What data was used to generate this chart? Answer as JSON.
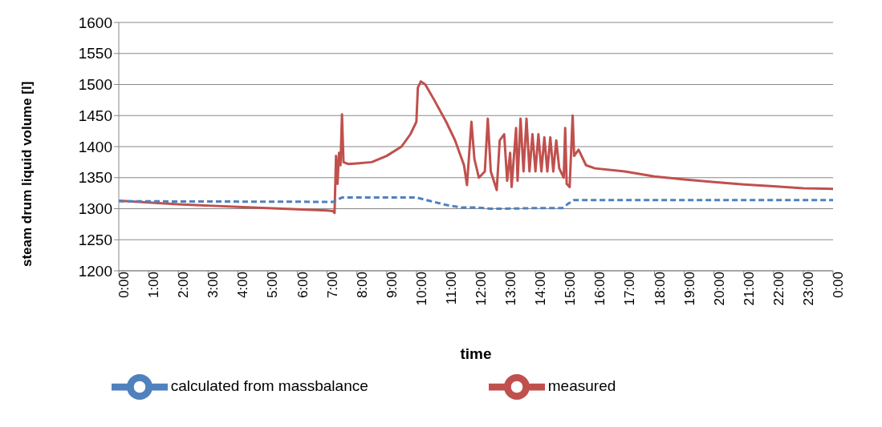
{
  "chart_data": {
    "type": "line",
    "xlabel": "time",
    "ylabel": "steam drum liquid volume [l]",
    "xlim": [
      0,
      24
    ],
    "xticks": [
      {
        "value": 0,
        "label": "0:00"
      },
      {
        "value": 1,
        "label": "1:00"
      },
      {
        "value": 2,
        "label": "2:00"
      },
      {
        "value": 3,
        "label": "3:00"
      },
      {
        "value": 4,
        "label": "4:00"
      },
      {
        "value": 5,
        "label": "5:00"
      },
      {
        "value": 6,
        "label": "6:00"
      },
      {
        "value": 7,
        "label": "7:00"
      },
      {
        "value": 8,
        "label": "8:00"
      },
      {
        "value": 9,
        "label": "9:00"
      },
      {
        "value": 10,
        "label": "10:00"
      },
      {
        "value": 11,
        "label": "11:00"
      },
      {
        "value": 12,
        "label": "12:00"
      },
      {
        "value": 13,
        "label": "13:00"
      },
      {
        "value": 14,
        "label": "14:00"
      },
      {
        "value": 15,
        "label": "15:00"
      },
      {
        "value": 16,
        "label": "16:00"
      },
      {
        "value": 17,
        "label": "17:00"
      },
      {
        "value": 18,
        "label": "18:00"
      },
      {
        "value": 19,
        "label": "19:00"
      },
      {
        "value": 20,
        "label": "20:00"
      },
      {
        "value": 21,
        "label": "21:00"
      },
      {
        "value": 22,
        "label": "22:00"
      },
      {
        "value": 23,
        "label": "23:00"
      },
      {
        "value": 24,
        "label": "0:00"
      }
    ],
    "ylim": [
      1200,
      1600
    ],
    "yticks": [
      1200,
      1250,
      1300,
      1350,
      1400,
      1450,
      1500,
      1550,
      1600
    ],
    "grid": "y",
    "legend": "bottom",
    "marker": "none",
    "series": [
      {
        "name": "measured",
        "color": "#c0504d",
        "line_style": "solid",
        "x": [
          0,
          1,
          2,
          3,
          4,
          5,
          6,
          7,
          7.2,
          7.25,
          7.3,
          7.35,
          7.4,
          7.45,
          7.5,
          7.55,
          7.7,
          8,
          8.5,
          9,
          9.5,
          9.8,
          10,
          10.05,
          10.15,
          10.3,
          10.6,
          11,
          11.3,
          11.6,
          11.7,
          11.85,
          11.95,
          12.1,
          12.3,
          12.4,
          12.5,
          12.7,
          12.8,
          12.95,
          13.05,
          13.15,
          13.2,
          13.35,
          13.4,
          13.5,
          13.6,
          13.7,
          13.8,
          13.9,
          14,
          14.1,
          14.2,
          14.3,
          14.4,
          14.5,
          14.6,
          14.7,
          14.8,
          14.95,
          15,
          15.05,
          15.15,
          15.25,
          15.3,
          15.45,
          15.7,
          16,
          17,
          18,
          19,
          20,
          21,
          22,
          23,
          24
        ],
        "values": [
          1313,
          1310,
          1307,
          1305,
          1303,
          1301,
          1299,
          1297,
          1296,
          1293,
          1385,
          1340,
          1390,
          1370,
          1452,
          1375,
          1372,
          1373,
          1375,
          1385,
          1400,
          1420,
          1440,
          1495,
          1505,
          1500,
          1475,
          1440,
          1410,
          1370,
          1338,
          1440,
          1380,
          1350,
          1360,
          1445,
          1360,
          1330,
          1410,
          1420,
          1345,
          1390,
          1335,
          1430,
          1345,
          1445,
          1360,
          1445,
          1360,
          1420,
          1360,
          1420,
          1360,
          1415,
          1360,
          1415,
          1360,
          1410,
          1365,
          1350,
          1430,
          1340,
          1335,
          1450,
          1385,
          1395,
          1370,
          1365,
          1360,
          1352,
          1347,
          1343,
          1339,
          1336,
          1333,
          1332
        ]
      },
      {
        "name": "calculated from massbalance",
        "color": "#4f81bd",
        "line_style": "dashed",
        "x": [
          0,
          7.2,
          7.5,
          10,
          10.5,
          11,
          11.5,
          12,
          12.5,
          13,
          14,
          14.9,
          15.1,
          15.3,
          24
        ],
        "values": [
          1312,
          1311,
          1318,
          1318,
          1312,
          1306,
          1302,
          1302,
          1300,
          1300,
          1301,
          1301,
          1308,
          1314,
          1314
        ]
      }
    ]
  }
}
